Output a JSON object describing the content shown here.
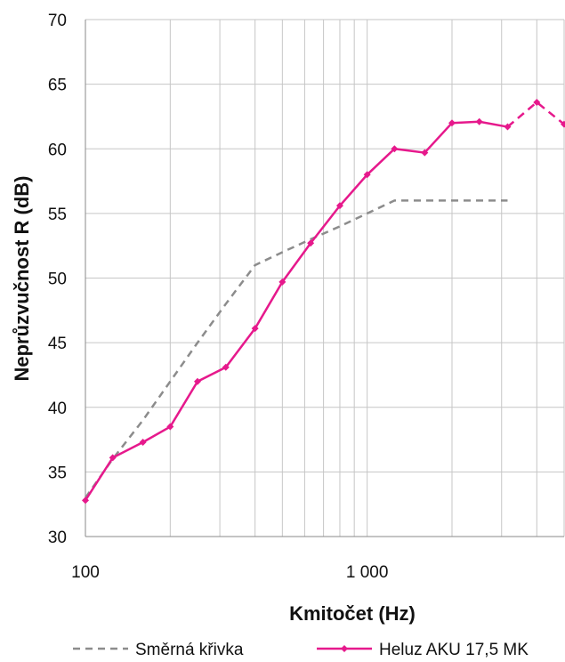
{
  "chart_data": {
    "type": "line",
    "title": "",
    "xlabel": "Kmitočet (Hz)",
    "ylabel": "Neprůzvučnost R (dB)",
    "x_scale": "log",
    "xlim": [
      100,
      5000
    ],
    "ylim": [
      30,
      70
    ],
    "y_ticks": [
      30,
      35,
      40,
      45,
      50,
      55,
      60,
      65,
      70
    ],
    "x_ticks": [
      {
        "value": 100,
        "label": "100"
      },
      {
        "value": 1000,
        "label": "1 000"
      }
    ],
    "grid": true,
    "legend_position": "bottom",
    "series": [
      {
        "name": "Směrná křivka",
        "color": "#8c8c8c",
        "style": "dashed",
        "x": [
          100,
          125,
          160,
          200,
          250,
          315,
          400,
          500,
          630,
          800,
          1000,
          1250,
          1600,
          2000,
          2500,
          3150
        ],
        "y": [
          33,
          36,
          39,
          42,
          45,
          48,
          51,
          52,
          53,
          54,
          55,
          56,
          56,
          56,
          56,
          56
        ]
      },
      {
        "name": "Heluz AKU 17,5 MK",
        "color": "#e6198c",
        "style": "solid-markers",
        "dashed_from_index": 15,
        "x": [
          100,
          125,
          160,
          200,
          250,
          315,
          400,
          500,
          630,
          800,
          1000,
          1250,
          1600,
          2000,
          2500,
          3150,
          4000,
          5000
        ],
        "y": [
          32.8,
          36.1,
          37.3,
          38.5,
          42.0,
          43.1,
          46.1,
          49.7,
          52.7,
          55.6,
          58.0,
          60.0,
          59.7,
          62.0,
          62.1,
          61.7,
          63.6,
          61.9
        ]
      }
    ]
  }
}
